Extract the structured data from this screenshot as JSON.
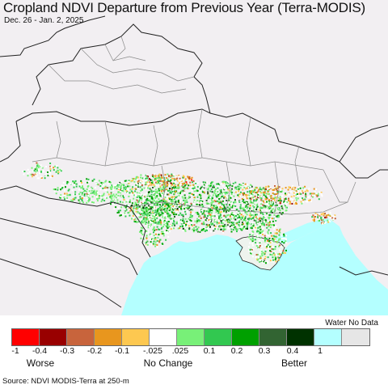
{
  "title": "Cropland NDVI Departure from Previous Year (Terra-MODIS)",
  "subtitle": "Dec. 26 - Jan. 2, 2025",
  "legend": {
    "water_no_data_label": "Water No Data",
    "colors": [
      "#ff0000",
      "#990000",
      "#c8643c",
      "#e8961e",
      "#fdc850",
      "#ffffff",
      "#78f078",
      "#32c850",
      "#00a000",
      "#326432",
      "#003200",
      "#b4ffff",
      "#e6e6e6"
    ],
    "ticks": [
      "-1",
      "-0.4",
      "-0.3",
      "-0.2",
      "-0.1",
      "-.025",
      ".025",
      "0.1",
      "0.2",
      "0.3",
      "0.4",
      "1"
    ],
    "categories": [
      "Worse",
      "No Change",
      "Better"
    ]
  },
  "map": {
    "land_color": "#f2eff2",
    "sea_color": "#b4ffff",
    "border_color": "#222222",
    "admin_color": "#8a8a8a"
  },
  "source": "Source: NDVI MODIS-Terra at 250-m"
}
